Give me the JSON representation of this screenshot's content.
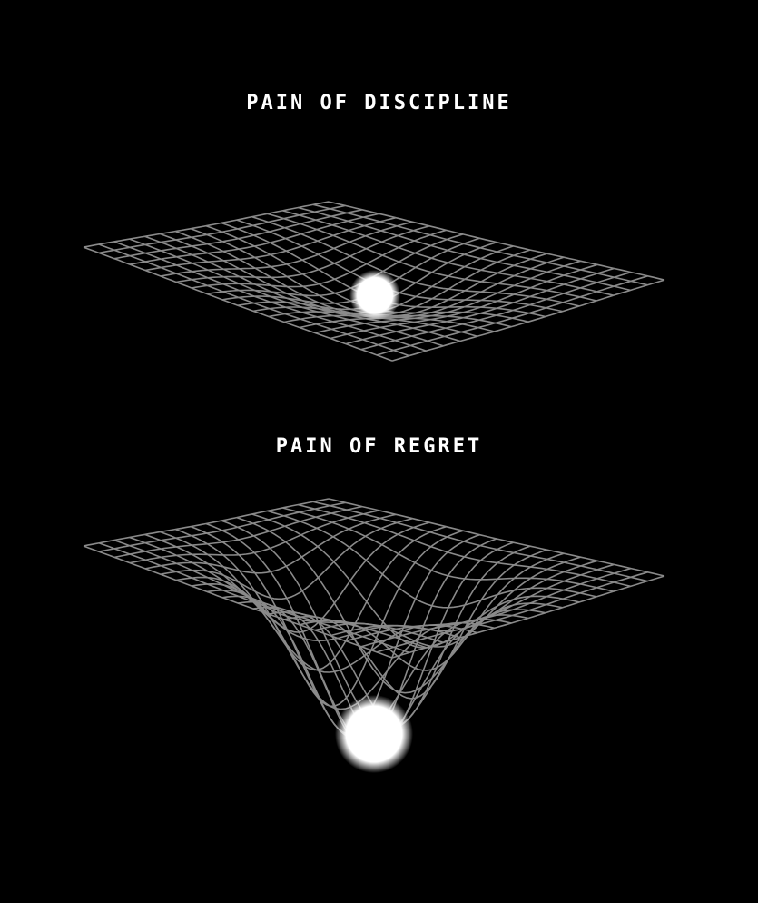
{
  "titles": {
    "discipline": "PAIN OF DISCIPLINE",
    "regret": "PAIN OF REGRET"
  },
  "colors": {
    "background": "#000000",
    "text": "#ffffff",
    "grid_line": "#8a8a8a",
    "sphere": "#ffffff"
  },
  "illustrations": [
    {
      "name": "shallow-well-grid",
      "depression": "shallow"
    },
    {
      "name": "deep-well-grid",
      "depression": "deep"
    }
  ]
}
